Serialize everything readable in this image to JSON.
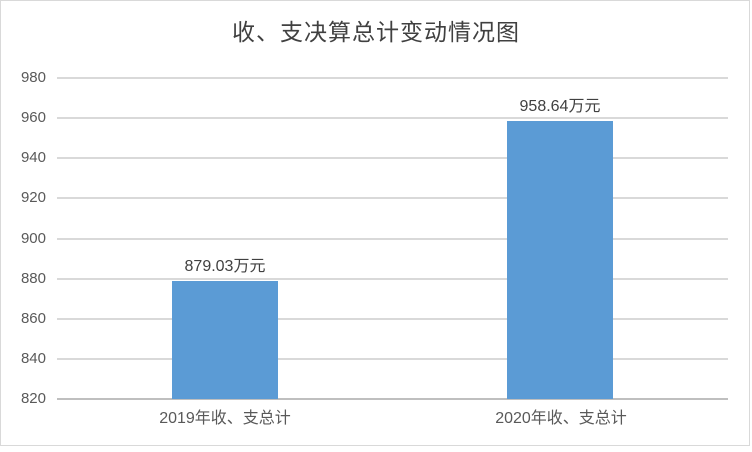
{
  "chart_data": {
    "type": "bar",
    "title": "收、支决算总计变动情况图",
    "categories": [
      "2019年收、支总计",
      "2020年收、支总计"
    ],
    "values": [
      879.03,
      958.64
    ],
    "data_labels": [
      "879.03万元",
      "958.64万元"
    ],
    "unit": "万元",
    "xlabel": "",
    "ylabel": "",
    "ylim": [
      820,
      980
    ],
    "ytick_step": 20,
    "yticks": [
      980,
      960,
      940,
      920,
      900,
      880,
      860,
      840,
      820
    ],
    "grid": true,
    "legend": false,
    "colors": {
      "bar": "#5B9BD5",
      "gridline": "#D9D9D9",
      "axis_line": "#BFBFBF",
      "tick_label": "#595959",
      "data_label": "#404040",
      "title": "#404040",
      "border": "#D9D9D9",
      "background": "#FFFFFF"
    }
  }
}
